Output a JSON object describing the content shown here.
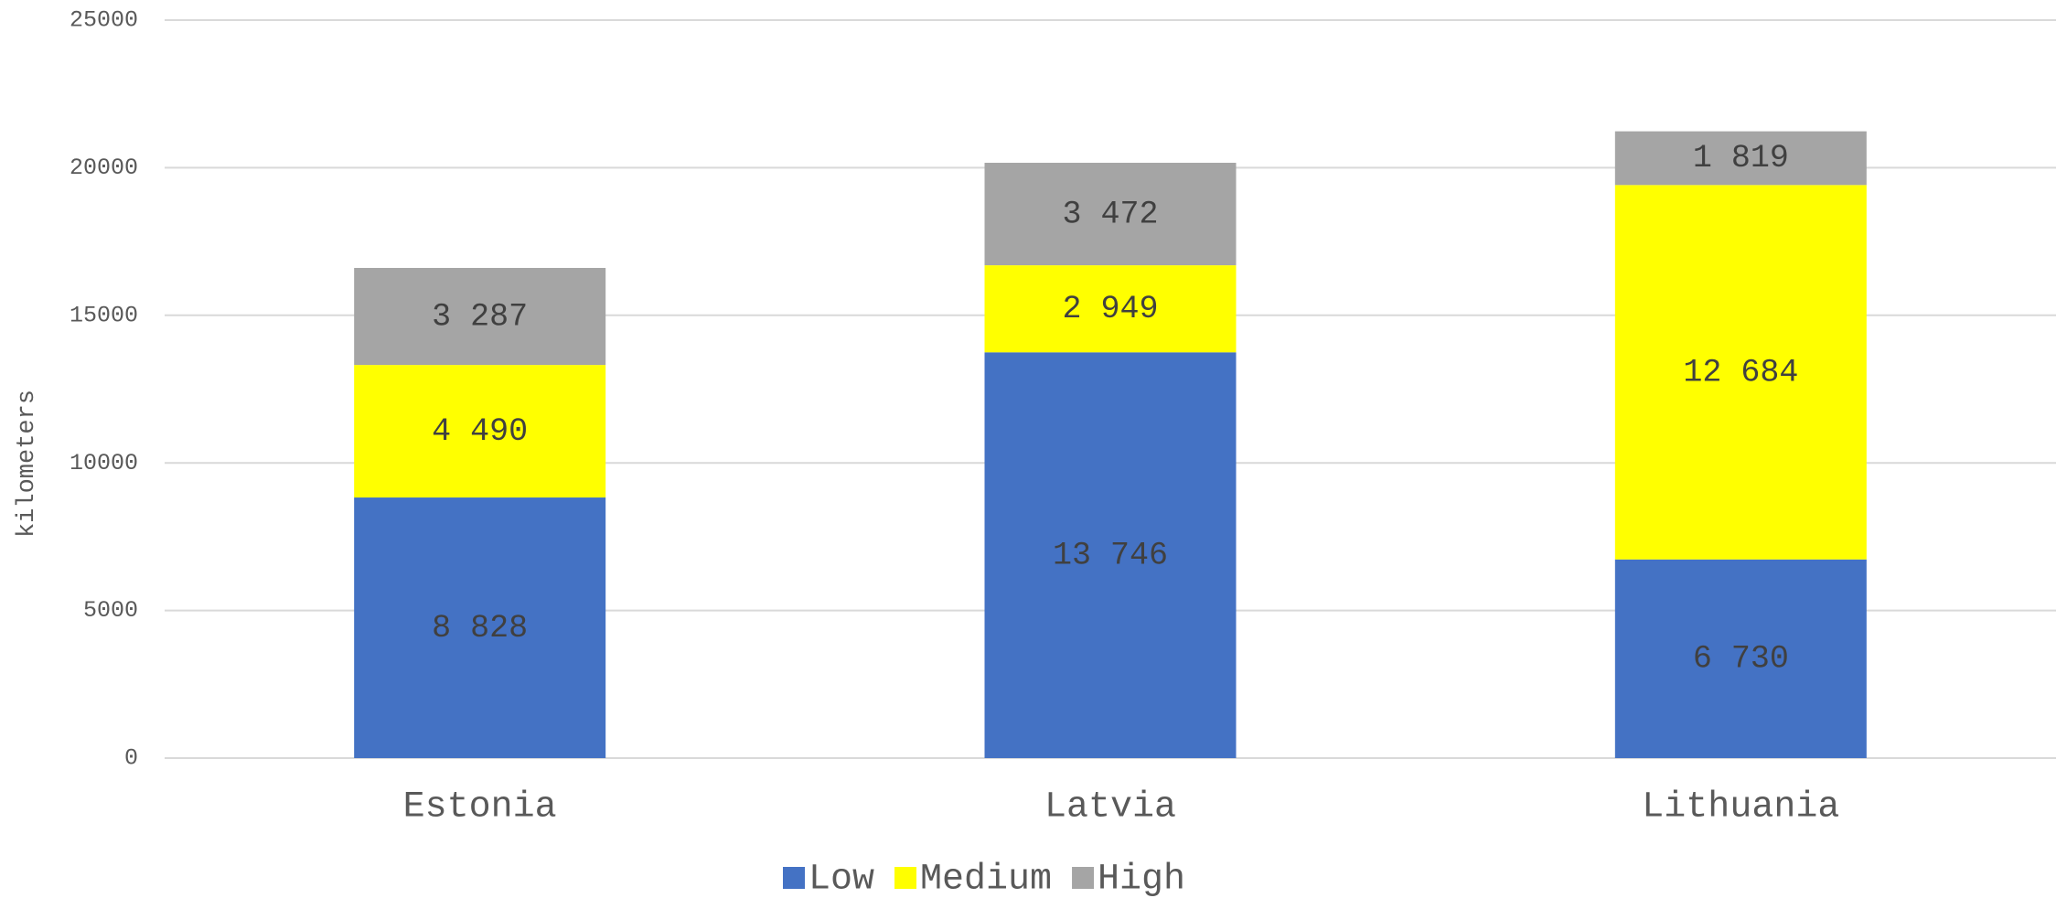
{
  "chart_data": {
    "type": "stacked_bar",
    "y_label": "kilometers",
    "categories": [
      "Estonia",
      "Latvia",
      "Lithuania"
    ],
    "series": [
      {
        "name": "Low",
        "color": "#4472c4",
        "values": [
          8828,
          13746,
          6730
        ],
        "value_labels": [
          "8 828",
          "13 746",
          "6 730"
        ]
      },
      {
        "name": "Medium",
        "color": "#ffff00",
        "values": [
          4490,
          2949,
          12684
        ],
        "value_labels": [
          "4 490",
          "2 949",
          "12 684"
        ]
      },
      {
        "name": "High",
        "color": "#a5a5a5",
        "values": [
          3287,
          3472,
          1819
        ],
        "value_labels": [
          "3 287",
          "3 472",
          "1 819"
        ]
      }
    ],
    "ylim": [
      0,
      25000
    ],
    "yticks": [
      0,
      5000,
      10000,
      15000,
      20000,
      25000
    ],
    "grid": true,
    "legend": "bottom"
  }
}
